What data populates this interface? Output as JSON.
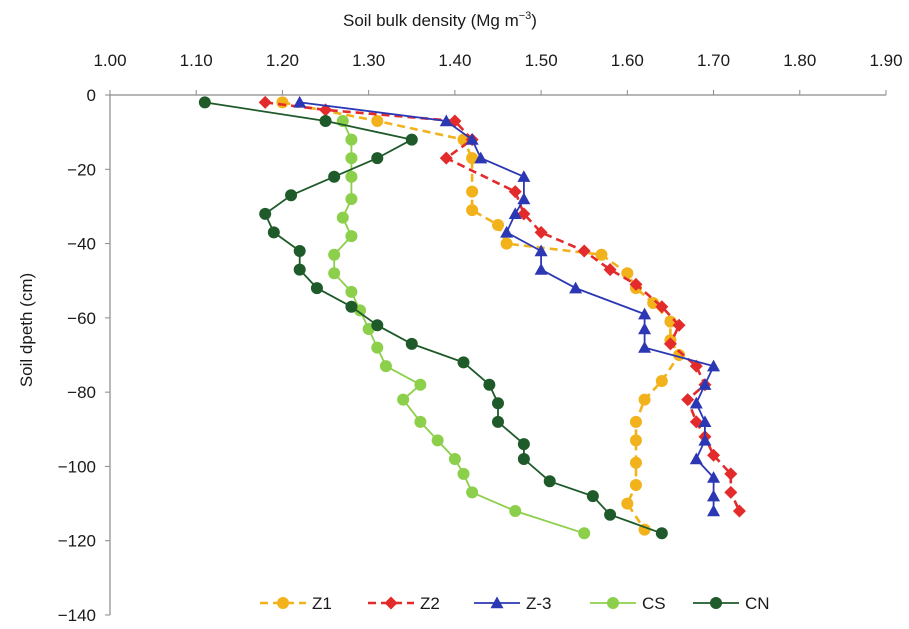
{
  "chart_data": {
    "type": "line",
    "xlabel": "Soil bulk density (Mg m",
    "xlabel_unit_exponent": "−3",
    "xlabel_close": ")",
    "ylabel": "Soil dpeth (cm)",
    "xlim": [
      1.0,
      1.9
    ],
    "ylim": [
      -140,
      0
    ],
    "x_axis_position": "top",
    "x_ticks": [
      1.0,
      1.1,
      1.2,
      1.3,
      1.4,
      1.5,
      1.6,
      1.7,
      1.8,
      1.9
    ],
    "x_tick_labels": [
      "1.00",
      "1.10",
      "1.20",
      "1.30",
      "1.40",
      "1.50",
      "1.60",
      "1.70",
      "1.80",
      "1.90"
    ],
    "y_ticks": [
      0,
      -20,
      -40,
      -60,
      -80,
      -100,
      -120,
      -140
    ],
    "y_tick_labels": [
      "0",
      "−20",
      "−40",
      "−60",
      "−80",
      "−100",
      "−120",
      "−140"
    ],
    "grid": false,
    "legend_position": "bottom",
    "series": [
      {
        "name": "Z1",
        "color": "#f2b21b",
        "marker": "circle",
        "line": "dashed",
        "points": [
          [
            1.2,
            -2
          ],
          [
            1.31,
            -7
          ],
          [
            1.41,
            -12
          ],
          [
            1.42,
            -17
          ],
          [
            1.42,
            -26
          ],
          [
            1.42,
            -31
          ],
          [
            1.45,
            -35
          ],
          [
            1.46,
            -40
          ],
          [
            1.57,
            -43
          ],
          [
            1.6,
            -48
          ],
          [
            1.61,
            -52
          ],
          [
            1.63,
            -56
          ],
          [
            1.65,
            -61
          ],
          [
            1.65,
            -66
          ],
          [
            1.66,
            -70
          ],
          [
            1.64,
            -77
          ],
          [
            1.62,
            -82
          ],
          [
            1.61,
            -88
          ],
          [
            1.61,
            -93
          ],
          [
            1.61,
            -99
          ],
          [
            1.61,
            -105
          ],
          [
            1.6,
            -110
          ],
          [
            1.62,
            -117
          ]
        ]
      },
      {
        "name": "Z2",
        "color": "#e32b2b",
        "marker": "diamond",
        "line": "dashed",
        "points": [
          [
            1.18,
            -2
          ],
          [
            1.25,
            -4
          ],
          [
            1.4,
            -7
          ],
          [
            1.42,
            -12
          ],
          [
            1.39,
            -17
          ],
          [
            1.47,
            -26
          ],
          [
            1.48,
            -32
          ],
          [
            1.5,
            -37
          ],
          [
            1.55,
            -42
          ],
          [
            1.58,
            -47
          ],
          [
            1.61,
            -51
          ],
          [
            1.64,
            -57
          ],
          [
            1.66,
            -62
          ],
          [
            1.65,
            -67
          ],
          [
            1.68,
            -73
          ],
          [
            1.69,
            -78
          ],
          [
            1.67,
            -82
          ],
          [
            1.68,
            -88
          ],
          [
            1.69,
            -92
          ],
          [
            1.7,
            -97
          ],
          [
            1.72,
            -102
          ],
          [
            1.72,
            -107
          ],
          [
            1.73,
            -112
          ]
        ]
      },
      {
        "name": "Z-3",
        "color": "#2c38b3",
        "marker": "triangle",
        "line": "solid",
        "points": [
          [
            1.22,
            -2
          ],
          [
            1.39,
            -7
          ],
          [
            1.42,
            -12
          ],
          [
            1.43,
            -17
          ],
          [
            1.48,
            -22
          ],
          [
            1.48,
            -28
          ],
          [
            1.47,
            -32
          ],
          [
            1.46,
            -37
          ],
          [
            1.5,
            -42
          ],
          [
            1.5,
            -47
          ],
          [
            1.54,
            -52
          ],
          [
            1.62,
            -59
          ],
          [
            1.62,
            -63
          ],
          [
            1.62,
            -68
          ],
          [
            1.7,
            -73
          ],
          [
            1.69,
            -78
          ],
          [
            1.68,
            -83
          ],
          [
            1.69,
            -88
          ],
          [
            1.69,
            -93
          ],
          [
            1.68,
            -98
          ],
          [
            1.7,
            -103
          ],
          [
            1.7,
            -108
          ],
          [
            1.7,
            -112
          ]
        ]
      },
      {
        "name": "CS",
        "color": "#8bcf4a",
        "marker": "circle",
        "line": "solid",
        "points": [
          [
            1.27,
            -7
          ],
          [
            1.28,
            -12
          ],
          [
            1.28,
            -17
          ],
          [
            1.28,
            -22
          ],
          [
            1.28,
            -28
          ],
          [
            1.27,
            -33
          ],
          [
            1.28,
            -38
          ],
          [
            1.26,
            -43
          ],
          [
            1.26,
            -48
          ],
          [
            1.28,
            -53
          ],
          [
            1.29,
            -58
          ],
          [
            1.3,
            -63
          ],
          [
            1.31,
            -68
          ],
          [
            1.32,
            -73
          ],
          [
            1.36,
            -78
          ],
          [
            1.34,
            -82
          ],
          [
            1.36,
            -88
          ],
          [
            1.38,
            -93
          ],
          [
            1.4,
            -98
          ],
          [
            1.41,
            -102
          ],
          [
            1.42,
            -107
          ],
          [
            1.47,
            -112
          ],
          [
            1.55,
            -118
          ]
        ]
      },
      {
        "name": "CN",
        "color": "#1e5a2a",
        "marker": "circle",
        "line": "solid",
        "points": [
          [
            1.11,
            -2
          ],
          [
            1.25,
            -7
          ],
          [
            1.35,
            -12
          ],
          [
            1.31,
            -17
          ],
          [
            1.26,
            -22
          ],
          [
            1.21,
            -27
          ],
          [
            1.18,
            -32
          ],
          [
            1.19,
            -37
          ],
          [
            1.22,
            -42
          ],
          [
            1.22,
            -47
          ],
          [
            1.24,
            -52
          ],
          [
            1.28,
            -57
          ],
          [
            1.31,
            -62
          ],
          [
            1.35,
            -67
          ],
          [
            1.41,
            -72
          ],
          [
            1.44,
            -78
          ],
          [
            1.45,
            -83
          ],
          [
            1.45,
            -88
          ],
          [
            1.48,
            -94
          ],
          [
            1.48,
            -98
          ],
          [
            1.51,
            -104
          ],
          [
            1.56,
            -108
          ],
          [
            1.58,
            -113
          ],
          [
            1.64,
            -118
          ]
        ]
      }
    ]
  }
}
